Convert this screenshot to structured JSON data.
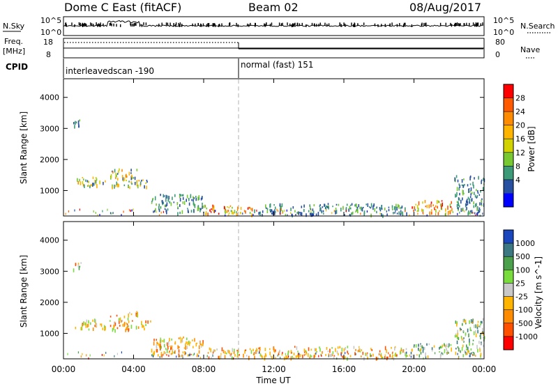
{
  "header": {
    "title": "Dome C East (fitACF)",
    "beam": "Beam 02",
    "date": "08/Aug/2017"
  },
  "params": {
    "nsky_label": "N.Sky",
    "nsky_ticks": [
      "10^5",
      "10^0"
    ],
    "nsearch_label": "N.Search",
    "nsearch_ticks": [
      "10^5",
      "10^0"
    ],
    "freq_label": "Freq.",
    "freq_unit": "[MHz]",
    "freq_ticks": [
      "18",
      "8"
    ],
    "nave_label": "Nave",
    "nave_ticks": [
      "80",
      "0"
    ],
    "cpid_label": "CPID",
    "cpid_segments": [
      {
        "label": "interleavedscan -190",
        "start_hour": 0
      },
      {
        "label": "normal (fast) 151",
        "start_hour": 10
      }
    ]
  },
  "x_axis": {
    "label": "Time UT",
    "ticks": [
      "00:00",
      "04:00",
      "08:00",
      "12:00",
      "16:00",
      "20:00",
      "00:00"
    ],
    "range_hours": [
      0,
      24
    ],
    "divider_hour": 10
  },
  "chart_data": [
    {
      "type": "heatmap",
      "ylabel": "Slant Range [km]",
      "yticks": [
        "4000",
        "3000",
        "2000",
        "1000"
      ],
      "ylim": [
        180,
        4600
      ],
      "colorbar": {
        "label": "Power [dB]",
        "ticks": [
          "28",
          "24",
          "20",
          "16",
          "12",
          "8",
          "4"
        ],
        "colors": [
          "#ff0000",
          "#ff5a00",
          "#ff8c00",
          "#ffb400",
          "#d2d200",
          "#78c832",
          "#3c9a78",
          "#2850a0",
          "#0000ff"
        ]
      },
      "patches": [
        {
          "x": [
            0.5,
            1.0
          ],
          "range": [
            3050,
            3350
          ],
          "level": "weak"
        },
        {
          "x": [
            0.6,
            2.4
          ],
          "range": [
            1150,
            1480
          ],
          "level": "mixed"
        },
        {
          "x": [
            2.6,
            4.2
          ],
          "range": [
            1130,
            1720
          ],
          "level": "mixed"
        },
        {
          "x": [
            4.2,
            5.0
          ],
          "range": [
            1150,
            1420
          ],
          "level": "mixed"
        },
        {
          "x": [
            5.0,
            8.0
          ],
          "range": [
            300,
            900
          ],
          "level": "weak"
        },
        {
          "x": [
            8.0,
            10.8
          ],
          "range": [
            250,
            560
          ],
          "level": "strong"
        },
        {
          "x": [
            10.8,
            19.6
          ],
          "range": [
            230,
            600
          ],
          "level": "weak"
        },
        {
          "x": [
            19.8,
            22.2
          ],
          "range": [
            280,
            700
          ],
          "level": "strong"
        },
        {
          "x": [
            22.3,
            24.0
          ],
          "range": [
            300,
            1500
          ],
          "level": "weak"
        }
      ]
    },
    {
      "type": "heatmap",
      "ylabel": "Slant Range [km]",
      "yticks": [
        "4000",
        "3000",
        "2000",
        "1000"
      ],
      "ylim": [
        180,
        4600
      ],
      "colorbar": {
        "label": "Velocity [m s^-1]",
        "ticks": [
          "1000",
          "500",
          "100",
          "25",
          "-25",
          "-100",
          "-500",
          "-1000"
        ],
        "colors": [
          "#1a46be",
          "#3c7882",
          "#4ba04b",
          "#78dc3c",
          "#c8c8c8",
          "#ffb400",
          "#ff8c00",
          "#ff5000",
          "#ff0000"
        ]
      },
      "patches": [
        {
          "x": [
            0.5,
            1.0
          ],
          "range": [
            3050,
            3350
          ],
          "level": "mixed"
        },
        {
          "x": [
            0.6,
            2.4
          ],
          "range": [
            1150,
            1480
          ],
          "level": "neg"
        },
        {
          "x": [
            2.6,
            4.2
          ],
          "range": [
            1130,
            1720
          ],
          "level": "neg"
        },
        {
          "x": [
            4.2,
            5.0
          ],
          "range": [
            1150,
            1420
          ],
          "level": "neg"
        },
        {
          "x": [
            5.0,
            8.0
          ],
          "range": [
            300,
            900
          ],
          "level": "neg"
        },
        {
          "x": [
            8.0,
            10.8
          ],
          "range": [
            250,
            560
          ],
          "level": "neg"
        },
        {
          "x": [
            10.8,
            19.6
          ],
          "range": [
            230,
            600
          ],
          "level": "neg"
        },
        {
          "x": [
            19.8,
            22.2
          ],
          "range": [
            280,
            700
          ],
          "level": "pos"
        },
        {
          "x": [
            22.3,
            24.0
          ],
          "range": [
            300,
            1500
          ],
          "level": "pos"
        }
      ]
    }
  ]
}
